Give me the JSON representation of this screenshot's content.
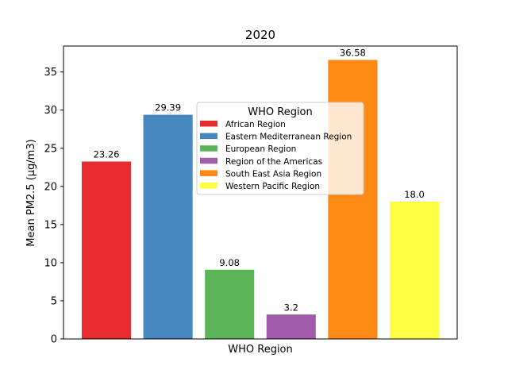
{
  "chart_data": {
    "type": "bar",
    "title": "2020",
    "xlabel": "WHO Region",
    "ylabel": "Mean PM2.5 (μg/m3)",
    "ylim": [
      0,
      38.4
    ],
    "yticks": [
      0,
      5,
      10,
      15,
      20,
      25,
      30,
      35
    ],
    "grid": false,
    "legend": {
      "title": "WHO Region",
      "placement": "upper-center"
    },
    "categories": [
      "African Region",
      "Eastern Mediterranean Region",
      "European Region",
      "Region of the Americas",
      "South East Asia Region",
      "Western Pacific Region"
    ],
    "values": [
      23.26,
      29.39,
      9.08,
      3.2,
      36.58,
      18.0
    ],
    "value_labels": [
      "23.26",
      "29.39",
      "9.08",
      "3.2",
      "36.58",
      "18.0"
    ],
    "colors": [
      "#e41a1c",
      "#377eb8",
      "#4daf4a",
      "#984ea3",
      "#ff7f00",
      "#ffff33"
    ]
  }
}
